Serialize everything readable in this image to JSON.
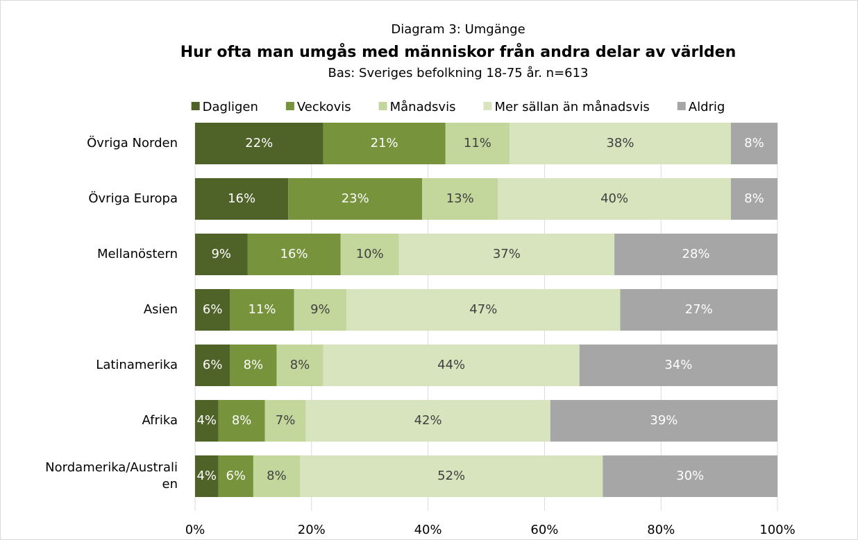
{
  "chart_data": {
    "type": "stacked_barh",
    "title": "Hur ofta man umgås med människor från andra delar av världen",
    "supertitle": "Diagram 3: Umgänge",
    "subtitle": "Bas: Sveriges befolkning 18-75 år. n=613",
    "categories": [
      "Övriga Norden",
      "Övriga Europa",
      "Mellanöstern",
      "Asien",
      "Latinamerika",
      "Afrika",
      "Nordamerika/Australien"
    ],
    "series": [
      {
        "name": "Dagligen",
        "color": "#4f6228",
        "values": [
          22,
          16,
          9,
          6,
          6,
          4,
          4
        ],
        "value_labels": [
          "22%",
          "16%",
          "9%",
          "6%",
          "6%",
          "4%",
          "4%"
        ]
      },
      {
        "name": "Veckovis",
        "color": "#77933c",
        "values": [
          21,
          23,
          16,
          11,
          8,
          8,
          6
        ],
        "value_labels": [
          "21%",
          "23%",
          "16%",
          "11%",
          "8%",
          "8%",
          "6%"
        ]
      },
      {
        "name": "Månadsvis",
        "color": "#c3d69b",
        "values": [
          11,
          13,
          10,
          9,
          8,
          7,
          8
        ],
        "value_labels": [
          "11%",
          "13%",
          "10%",
          "9%",
          "8%",
          "7%",
          "8%"
        ]
      },
      {
        "name": "Mer sällan än månadsvis",
        "color": "#d7e4bd",
        "values": [
          38,
          40,
          37,
          47,
          44,
          42,
          52
        ],
        "value_labels": [
          "38%",
          "40%",
          "37%",
          "47%",
          "44%",
          "42%",
          "52%"
        ]
      },
      {
        "name": "Aldrig",
        "color": "#a6a6a6",
        "values": [
          8,
          8,
          28,
          27,
          34,
          39,
          30
        ],
        "value_labels": [
          "8%",
          "8%",
          "28%",
          "27%",
          "34%",
          "39%",
          "30%"
        ]
      }
    ],
    "xlim": [
      0,
      100
    ],
    "xticks": [
      {
        "value": 0,
        "label": "0%"
      },
      {
        "value": 20,
        "label": "20%"
      },
      {
        "value": 40,
        "label": "40%"
      },
      {
        "value": 60,
        "label": "60%"
      },
      {
        "value": 80,
        "label": "80%"
      },
      {
        "value": 100,
        "label": "100%"
      }
    ],
    "grid": true,
    "legend": "top"
  }
}
